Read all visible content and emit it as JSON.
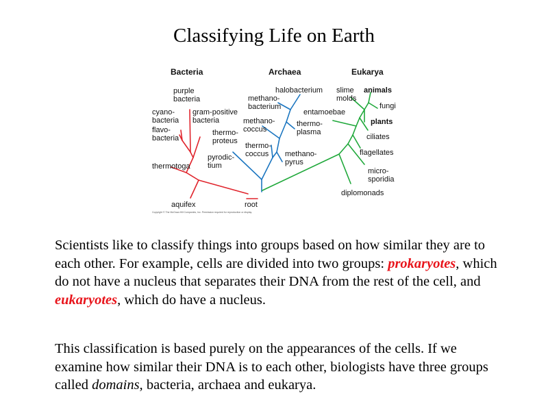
{
  "title": "Classifying Life on Earth",
  "tree": {
    "colors": {
      "bacteria": "#e0242c",
      "archaea": "#1a75c0",
      "eukarya": "#1fa83a"
    },
    "domains": {
      "bacteria": "Bacteria",
      "archaea": "Archaea",
      "eukarya": "Eukarya"
    },
    "bacteria": {
      "purple": [
        "purple",
        "bacteria"
      ],
      "cyano": [
        "cyano-",
        "bacteria"
      ],
      "gram_positive": [
        "gram-positive",
        "bacteria"
      ],
      "flavo": [
        "flavo-",
        "bacteria"
      ],
      "thermotoga": "thermotoga",
      "aquifex": "aquifex"
    },
    "archaea": {
      "halobacterium": "halobacterium",
      "methanobacterium": [
        "methano-",
        "bacterium"
      ],
      "methanococcus": [
        "methano-",
        "coccus"
      ],
      "thermoproteus": [
        "thermo-",
        "proteus"
      ],
      "thermoplasma": [
        "thermo-",
        "plasma"
      ],
      "thermococcus": [
        "thermo-",
        "coccus"
      ],
      "pyrodictium": [
        "pyrodic-",
        "tium"
      ],
      "methanopyrus": [
        "methano-",
        "pyrus"
      ]
    },
    "eukarya": {
      "slime_molds": [
        "slime",
        "molds"
      ],
      "animals": "animals",
      "fungi": "fungi",
      "entamoebae": "entamoebae",
      "plants": "plants",
      "ciliates": "ciliates",
      "flagellates": "flagellates",
      "microsporidia": [
        "micro-",
        "sporidia"
      ],
      "diplomonads": "diplomonads"
    },
    "root": "root",
    "copyright": "Copyright © The McGraw-Hill Companies, Inc. Permission required for reproduction or display."
  },
  "paragraph1": {
    "part1": "Scientists like to classify things into groups based on how similar they are to each other.  For example, cells are divided into two groups: ",
    "prokaryotes": "prokaryotes",
    "part2": ", which do not have a nucleus that separates their DNA from the rest of the cell, and ",
    "eukaryotes": "eukaryotes",
    "part3": ", which do have a nucleus."
  },
  "paragraph2": {
    "part1": "This classification is based purely on the appearances of the cells. If we examine how similar their DNA is to each other, biologists have three groups called ",
    "domains": "domains,",
    "part2": " bacteria, archaea and eukarya."
  }
}
